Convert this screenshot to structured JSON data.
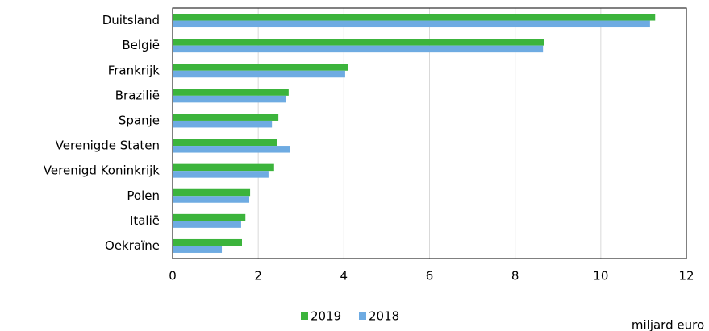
{
  "chart_data": {
    "type": "hbar",
    "categories": [
      "Duitsland",
      "België",
      "Frankrijk",
      "Brazilië",
      "Spanje",
      "Verenigde Staten",
      "Verenigd Koninkrijk",
      "Polen",
      "Italië",
      "Oekraïne"
    ],
    "series": [
      {
        "name": "2019",
        "color": "#3cb43c",
        "values": [
          11.27,
          8.68,
          4.09,
          2.71,
          2.47,
          2.43,
          2.37,
          1.81,
          1.7,
          1.62
        ]
      },
      {
        "name": "2018",
        "color": "#6eabe2",
        "values": [
          11.15,
          8.65,
          4.03,
          2.64,
          2.32,
          2.75,
          2.24,
          1.79,
          1.6,
          1.15
        ]
      }
    ],
    "xlim": [
      0,
      12
    ],
    "xticks": [
      0,
      2,
      4,
      6,
      8,
      10,
      12
    ],
    "grid": true,
    "x_label": "miljard euro"
  }
}
